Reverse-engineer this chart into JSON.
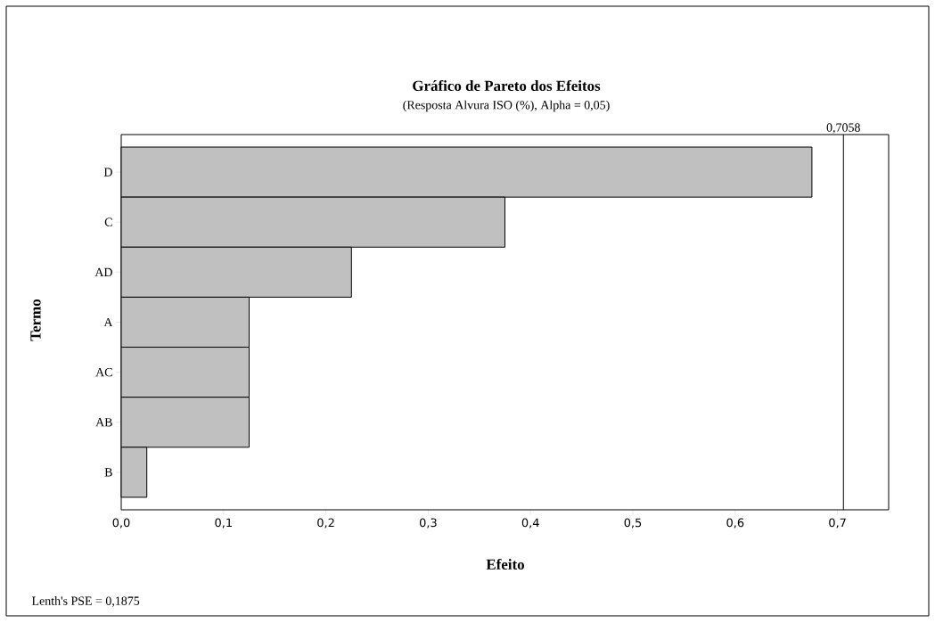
{
  "chart_data": {
    "type": "bar",
    "orientation": "horizontal",
    "title": "Gráfico de Pareto dos Efeitos",
    "subtitle": "(Resposta Alvura ISO (%), Alpha = 0,05)",
    "xlabel": "Efeito",
    "ylabel": "Termo",
    "categories": [
      "D",
      "C",
      "AD",
      "A",
      "AC",
      "AB",
      "B"
    ],
    "values": [
      0.675,
      0.375,
      0.225,
      0.125,
      0.125,
      0.125,
      0.025
    ],
    "color": "#c0c0c0",
    "xlim": [
      0,
      0.75
    ],
    "xticks": [
      {
        "value": 0,
        "label": "0,0"
      },
      {
        "value": 0.1,
        "label": "0,1"
      },
      {
        "value": 0.2,
        "label": "0,2"
      },
      {
        "value": 0.3,
        "label": "0,3"
      },
      {
        "value": 0.4,
        "label": "0,4"
      },
      {
        "value": 0.5,
        "label": "0,5"
      },
      {
        "value": 0.6,
        "label": "0,6"
      },
      {
        "value": 0.7,
        "label": "0,7"
      }
    ],
    "ref_lines": [
      {
        "axis": "x",
        "value": 0.7058,
        "label": "0,7058",
        "color": "#000000"
      }
    ],
    "annotations": [
      "Lenth's PSE = 0,1875"
    ]
  }
}
